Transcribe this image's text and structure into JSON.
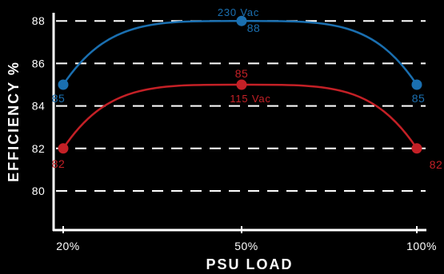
{
  "chart_data": {
    "type": "line",
    "x": [
      "20%",
      "50%",
      "100%"
    ],
    "xlabel": "PSU LOAD",
    "ylabel": "EFFICIENCY %",
    "yticks": [
      80,
      82,
      84,
      86,
      88
    ],
    "ylim": [
      78,
      88.5
    ],
    "grid": "horizontal dashed",
    "series": [
      {
        "name": "230 Vac",
        "values": [
          85,
          88,
          85
        ],
        "color": "#1a6fb0"
      },
      {
        "name": "115 Vac",
        "values": [
          82,
          85,
          82
        ],
        "color": "#c42026"
      }
    ]
  },
  "colors": {
    "background": "#000000",
    "axis": "#ffffff",
    "grid": "#ffffff"
  }
}
